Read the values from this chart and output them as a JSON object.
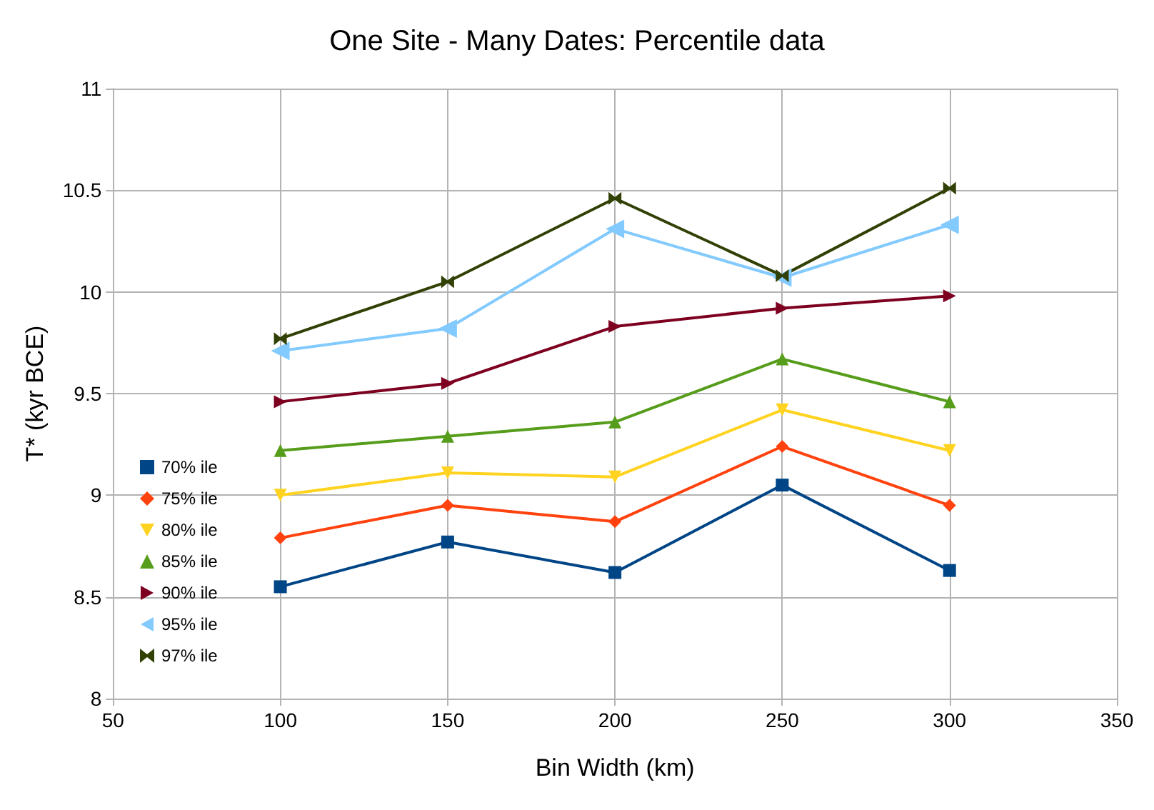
{
  "chart_data": {
    "type": "line",
    "title": "One Site - Many Dates: Percentile data",
    "xlabel": "Bin Width (km)",
    "ylabel": "T* (kyr BCE)",
    "x": [
      100,
      150,
      200,
      250,
      300
    ],
    "xlim": [
      50,
      350
    ],
    "xticks": [
      50,
      100,
      150,
      200,
      250,
      300,
      350
    ],
    "ylim": [
      8,
      11
    ],
    "yticks": [
      8,
      8.5,
      9,
      9.5,
      10,
      10.5,
      11
    ],
    "grid": true,
    "legend": "left",
    "line_style": "solid",
    "series": [
      {
        "name": "70% ile",
        "color": "#004586",
        "marker": "square",
        "values": [
          8.55,
          8.77,
          8.62,
          9.05,
          8.63
        ]
      },
      {
        "name": "75% ile",
        "color": "#ff420e",
        "marker": "diamond",
        "values": [
          8.79,
          8.95,
          8.87,
          9.24,
          8.95
        ]
      },
      {
        "name": "80% ile",
        "color": "#ffd320",
        "marker": "triangle-down",
        "values": [
          9.0,
          9.11,
          9.09,
          9.42,
          9.22
        ]
      },
      {
        "name": "85% ile",
        "color": "#579d1c",
        "marker": "triangle",
        "values": [
          9.22,
          9.29,
          9.36,
          9.67,
          9.46
        ]
      },
      {
        "name": "90% ile",
        "color": "#7e0021",
        "marker": "triangle-right",
        "values": [
          9.46,
          9.55,
          9.83,
          9.92,
          9.98
        ]
      },
      {
        "name": "95% ile",
        "color": "#83caff",
        "marker": "triangle-left",
        "values": [
          9.71,
          9.82,
          10.31,
          10.07,
          10.33
        ]
      },
      {
        "name": "97% ile",
        "color": "#314004",
        "marker": "cross",
        "values": [
          9.77,
          10.05,
          10.46,
          10.08,
          10.51
        ]
      }
    ]
  }
}
